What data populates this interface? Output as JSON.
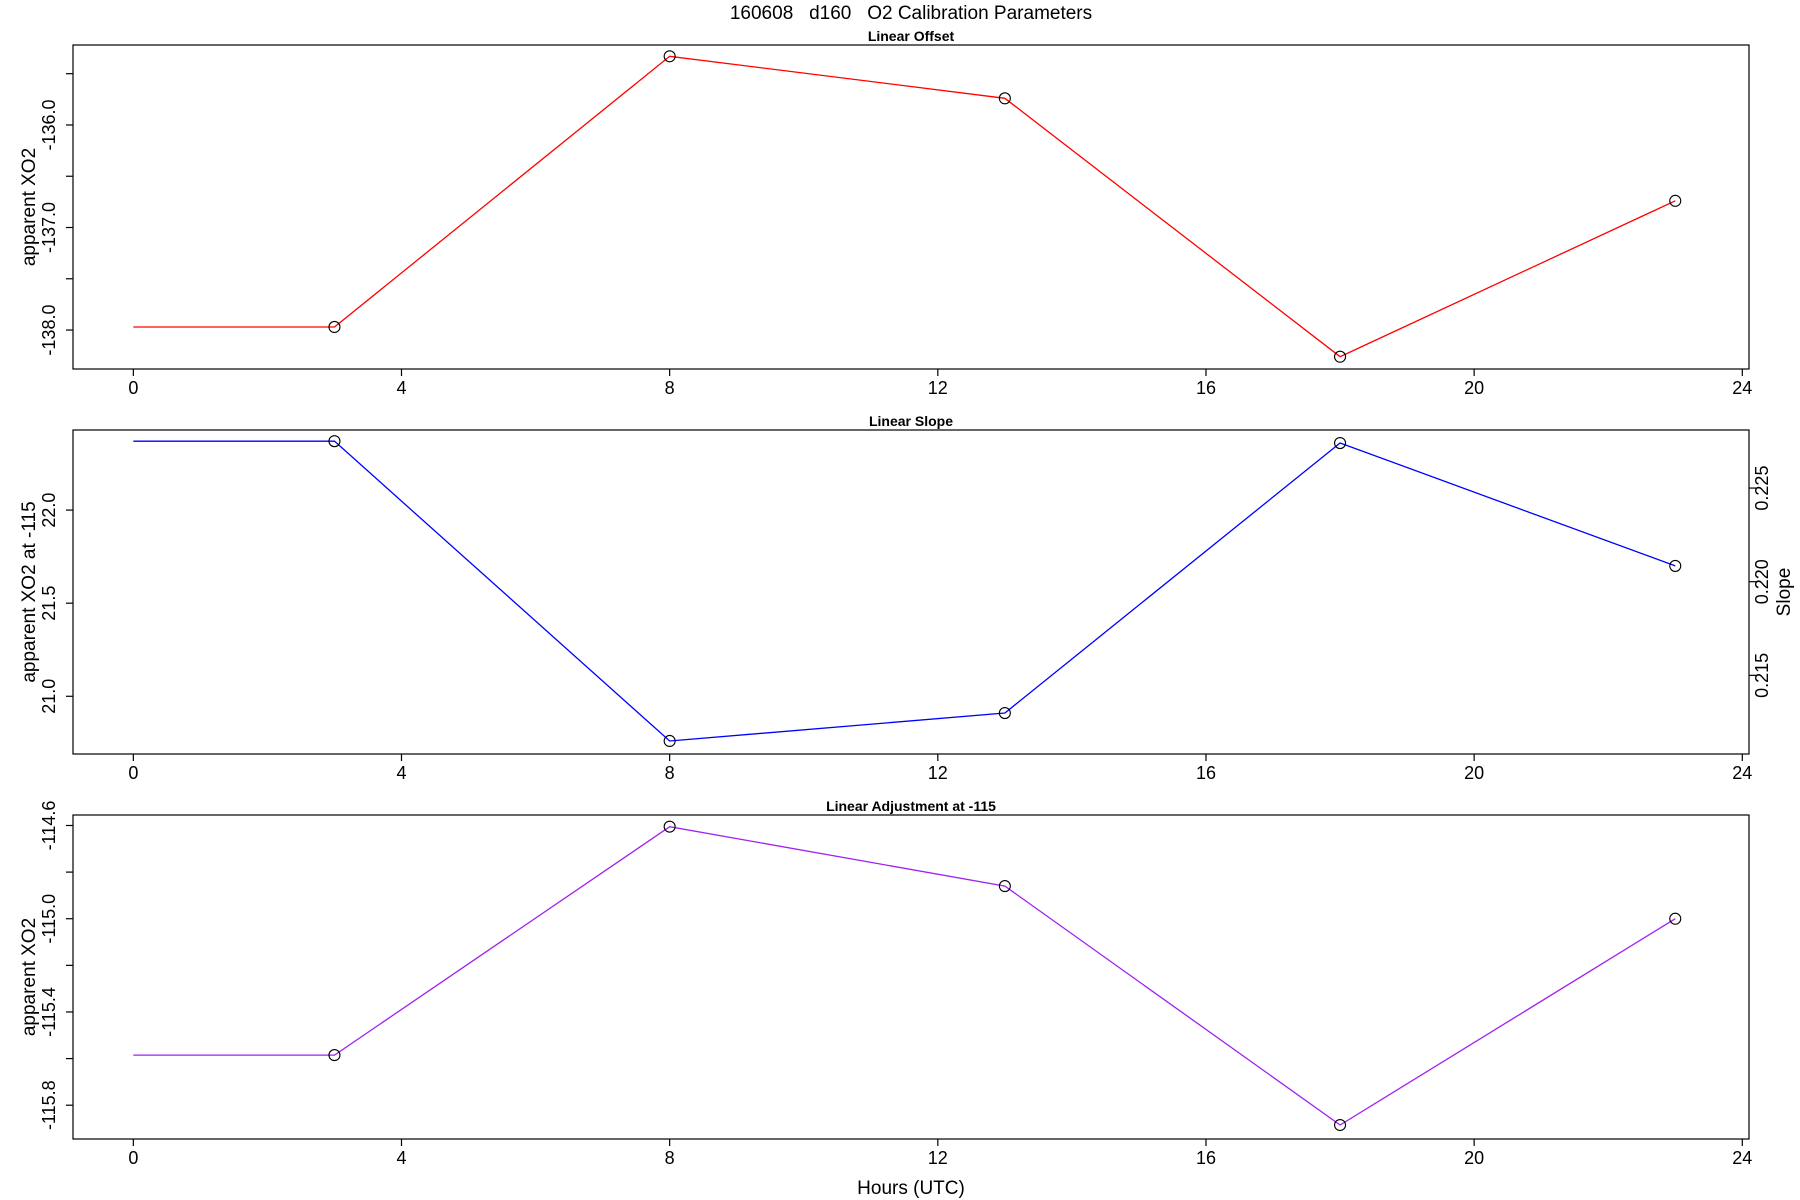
{
  "chart_data": {
    "title": "160608   d160   O2 Calibration Parameters",
    "xlabel": "Hours (UTC)",
    "x_ticks": [
      0,
      4,
      8,
      12,
      16,
      20,
      24
    ],
    "xlim": [
      -0.9,
      24.1
    ],
    "panels": [
      {
        "type": "line",
        "title": "Linear Offset",
        "ylabel": "apparent XO2",
        "color": "#ff0000",
        "ylim": [
          -138.38,
          -135.22
        ],
        "y_ticks": [
          -138.0,
          -137.5,
          -137.0,
          -136.5,
          -136.0,
          -135.5
        ],
        "y_tick_labels": [
          "-138.0",
          "",
          "-137.0",
          "",
          "-136.0",
          ""
        ],
        "x": [
          0,
          3,
          8,
          13,
          18,
          23
        ],
        "y": [
          -137.97,
          -137.97,
          -135.33,
          -135.74,
          -138.26,
          -136.74
        ],
        "markers": [
          false,
          true,
          true,
          true,
          true,
          true
        ]
      },
      {
        "type": "line",
        "title": "Linear Slope",
        "ylabel": "apparent XO2 at -115",
        "right_ylabel": "Slope",
        "color": "#0000ff",
        "ylim": [
          20.69,
          22.43
        ],
        "y_ticks": [
          21.0,
          21.5,
          22.0
        ],
        "y_tick_labels": [
          "21.0",
          "21.5",
          "22.0"
        ],
        "right_ylim": [
          0.2108,
          0.2281
        ],
        "right_y_ticks": [
          0.215,
          0.22,
          0.225
        ],
        "right_y_tick_labels": [
          "0.215",
          "0.220",
          "0.225"
        ],
        "x": [
          0,
          3,
          8,
          13,
          18,
          23
        ],
        "y": [
          22.37,
          22.37,
          20.76,
          20.91,
          22.36,
          21.7
        ],
        "markers": [
          false,
          true,
          true,
          true,
          true,
          true
        ]
      },
      {
        "type": "line",
        "title": "Linear Adjustment at -115",
        "ylabel": "apparent XO2",
        "color": "#a020f0",
        "ylim": [
          -115.945,
          -114.555
        ],
        "y_ticks": [
          -115.8,
          -115.6,
          -115.4,
          -115.2,
          -115.0,
          -114.8,
          -114.6
        ],
        "y_tick_labels": [
          "-115.8",
          "",
          "-115.4",
          "",
          "-115.0",
          "",
          "-114.6"
        ],
        "x": [
          0,
          3,
          8,
          13,
          18,
          23
        ],
        "y": [
          -115.585,
          -115.585,
          -114.605,
          -114.86,
          -115.885,
          -115.0
        ],
        "markers": [
          false,
          true,
          true,
          true,
          true,
          true
        ]
      }
    ]
  }
}
